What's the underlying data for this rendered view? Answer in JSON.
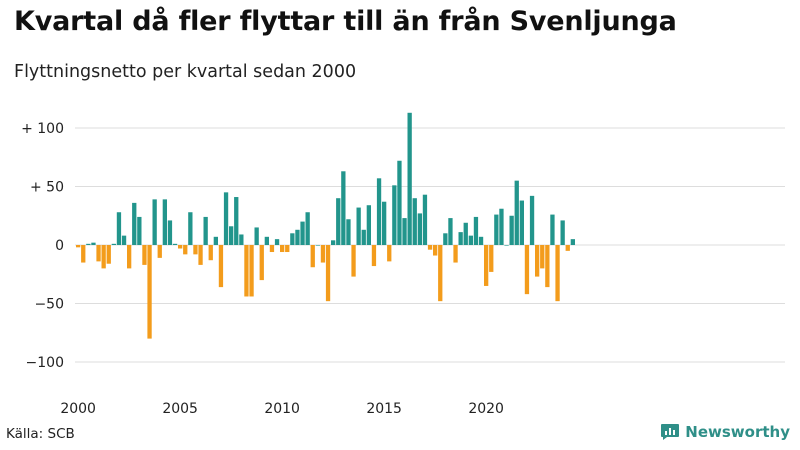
{
  "header": {
    "title": "Kvartal då fler flyttar till än från Svenljunga",
    "subtitle": "Flyttningsnetto per kvartal sedan 2000"
  },
  "footer": {
    "source": "Källa: SCB",
    "brand": "Newsworthy",
    "logo_icon": "bar-chart-icon"
  },
  "colors": {
    "positive": "#22958c",
    "negative": "#f39c1c",
    "grid": "#dddddd",
    "brand": "#2f8f88"
  },
  "chart_data": {
    "type": "bar",
    "title": "Kvartal då fler flyttar till än från Svenljunga",
    "subtitle": "Flyttningsnetto per kvartal sedan 2000",
    "x_start": "2000-Q1",
    "frequency": "quarter",
    "x_ticks": [
      "2000",
      "2005",
      "2010",
      "2015",
      "2020"
    ],
    "y_ticks": [
      {
        "value": 100,
        "label": "+ 100"
      },
      {
        "value": 50,
        "label": "+  50"
      },
      {
        "value": 0,
        "label": "0"
      },
      {
        "value": -50,
        "label": "−50"
      },
      {
        "value": -100,
        "label": "−100"
      }
    ],
    "ylim": [
      -110,
      115
    ],
    "grid": true,
    "legend": "none",
    "values": [
      -2,
      -15,
      1,
      2,
      -14,
      -20,
      -16,
      1,
      28,
      8,
      -20,
      36,
      24,
      -17,
      -80,
      39,
      -11,
      39,
      21,
      1,
      -3,
      -8,
      28,
      -8,
      -17,
      24,
      -13,
      7,
      -36,
      45,
      16,
      41,
      9,
      -44,
      -44,
      15,
      -30,
      7,
      -6,
      5,
      -6,
      -6,
      10,
      13,
      20,
      28,
      -19,
      0,
      -15,
      -48,
      4,
      40,
      63,
      22,
      -27,
      32,
      13,
      34,
      -18,
      57,
      37,
      -14,
      51,
      72,
      23,
      113,
      40,
      27,
      43,
      -4,
      -9,
      -48,
      10,
      23,
      -15,
      11,
      19,
      8,
      24,
      7,
      -35,
      -23,
      26,
      31,
      0,
      25,
      55,
      38,
      -42,
      42,
      -27,
      -20,
      -36,
      26,
      -48,
      21,
      -5,
      5
    ]
  }
}
